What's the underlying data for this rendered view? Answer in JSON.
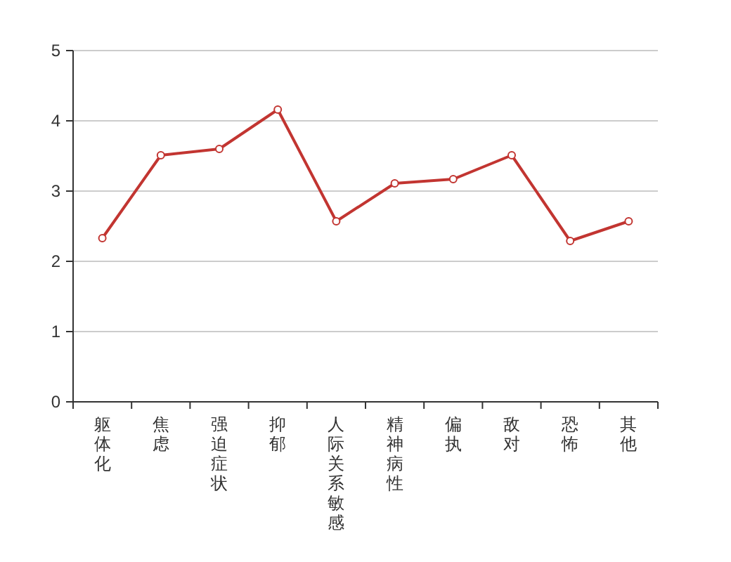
{
  "chart_data": {
    "type": "line",
    "categories": [
      "躯体化",
      "焦虑",
      "强迫症状",
      "抑郁",
      "人际关系敏感",
      "精神病性",
      "偏执",
      "敌对",
      "恐怖",
      "其他"
    ],
    "series": [
      {
        "color": "#c23531",
        "values": [
          2.33,
          3.51,
          3.6,
          4.16,
          2.57,
          3.11,
          3.17,
          3.51,
          2.29,
          2.57
        ]
      }
    ],
    "ylim": [
      0,
      5
    ],
    "yticks": [
      0,
      1,
      2,
      3,
      4,
      5
    ],
    "grid": "y",
    "marker": "circle",
    "line_style": "solid"
  }
}
